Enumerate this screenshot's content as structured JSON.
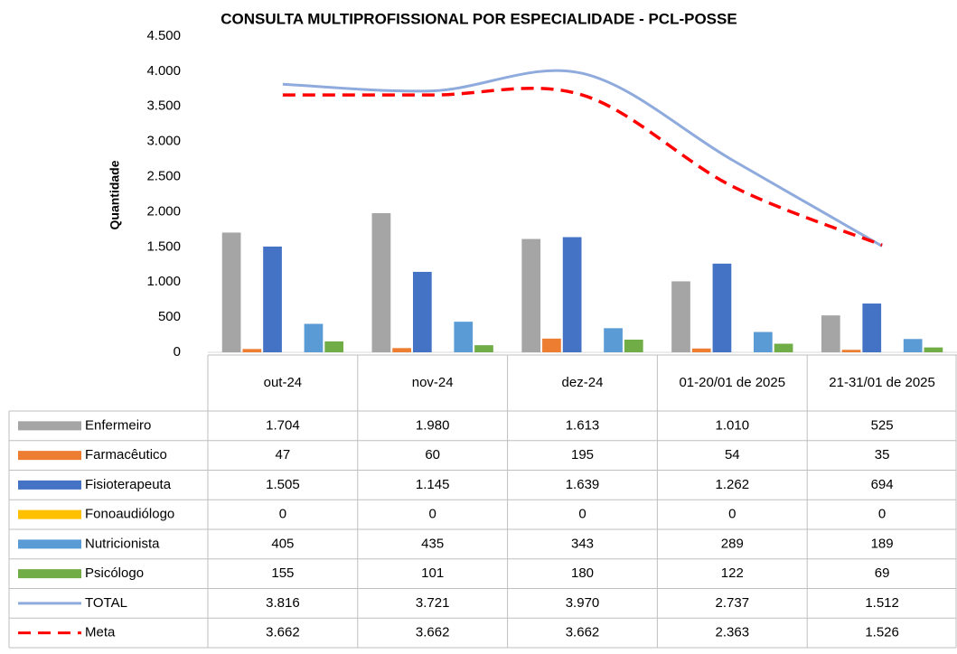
{
  "chart_data": {
    "type": "bar",
    "title": "CONSULTA MULTIPROFISSIONAL POR ESPECIALIDADE - PCL-POSSE",
    "y_label": "Quantidade",
    "categories": [
      "out-24",
      "nov-24",
      "dez-24",
      "01-20/01 de 2025",
      "21-31/01 de 2025"
    ],
    "ylim": [
      0,
      4500
    ],
    "yticks": [
      0,
      500,
      {
        "value": 1000,
        "label": "1.000"
      },
      {
        "value": 1500,
        "label": "1.500"
      },
      {
        "value": 2000,
        "label": "2.000"
      },
      {
        "value": 2500,
        "label": "2.500"
      },
      {
        "value": 3000,
        "label": "3.000"
      },
      {
        "value": 3500,
        "label": "3.500"
      },
      {
        "value": 4000,
        "label": "4.000"
      },
      {
        "value": 4500,
        "label": "4.500"
      }
    ],
    "series": [
      {
        "name": "Enfermeiro",
        "type": "bar",
        "color": "#a5a5a5",
        "values": [
          1704,
          1980,
          1613,
          1010,
          525
        ],
        "value_labels": [
          "1.704",
          "1.980",
          "1.613",
          "1.010",
          "525"
        ]
      },
      {
        "name": "Farmacêutico",
        "type": "bar",
        "color": "#ed7d31",
        "values": [
          47,
          60,
          195,
          54,
          35
        ]
      },
      {
        "name": "Fisioterapeuta",
        "type": "bar",
        "color": "#4472c4",
        "values": [
          1505,
          1145,
          1639,
          1262,
          694
        ],
        "value_labels": [
          "1.505",
          "1.145",
          "1.639",
          "1.262",
          "694"
        ]
      },
      {
        "name": "Fonoaudiólogo",
        "type": "bar",
        "color": "#ffc000",
        "values": [
          0,
          0,
          0,
          0,
          0
        ]
      },
      {
        "name": "Nutricionista",
        "type": "bar",
        "color": "#5b9bd5",
        "values": [
          405,
          435,
          343,
          289,
          189
        ]
      },
      {
        "name": "Psicólogo",
        "type": "bar",
        "color": "#70ad47",
        "values": [
          155,
          101,
          180,
          122,
          69
        ]
      },
      {
        "name": "TOTAL",
        "type": "line",
        "color": "#8faadc",
        "values": [
          3816,
          3721,
          3970,
          2737,
          1512
        ],
        "value_labels": [
          "3.816",
          "3.721",
          "3.970",
          "2.737",
          "1.512"
        ]
      },
      {
        "name": "Meta",
        "type": "line",
        "dashed": true,
        "color": "#ff0000",
        "values": [
          3662,
          3662,
          3662,
          2363,
          1526
        ],
        "value_labels": [
          "3.662",
          "3.662",
          "3.662",
          "2.363",
          "1.526"
        ]
      }
    ]
  }
}
